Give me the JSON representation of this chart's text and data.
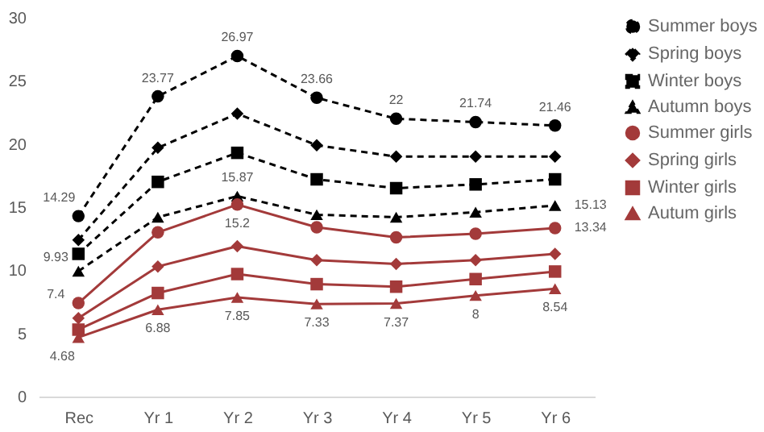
{
  "chart_data": {
    "type": "line",
    "categories": [
      "Rec",
      "Yr 1",
      "Yr 2",
      "Yr 3",
      "Yr 4",
      "Yr 5",
      "Yr 6"
    ],
    "ylim": [
      0,
      30
    ],
    "yticks": [
      0,
      5,
      10,
      15,
      20,
      25,
      30
    ],
    "grid": false,
    "legend": "right",
    "series": [
      {
        "name": "Summer boys",
        "color": "#000000",
        "marker": "circle",
        "line_style": "dashed",
        "values": [
          14.29,
          23.77,
          26.97,
          23.66,
          22,
          21.74,
          21.46
        ],
        "value_labels": [
          "14.29",
          "23.77",
          "26.97",
          "23.66",
          "22",
          "21.74",
          "21.46"
        ]
      },
      {
        "name": "Spring boys",
        "color": "#000000",
        "marker": "diamond",
        "line_style": "dashed",
        "values": [
          12.4,
          19.7,
          22.4,
          19.9,
          19.0,
          19.0,
          19.0
        ]
      },
      {
        "name": "Winter boys",
        "color": "#000000",
        "marker": "square",
        "line_style": "dashed",
        "values": [
          11.3,
          17.0,
          19.3,
          17.2,
          16.5,
          16.8,
          17.2
        ]
      },
      {
        "name": "Autumn boys",
        "color": "#000000",
        "marker": "triangle",
        "line_style": "dashed",
        "values": [
          9.93,
          14.2,
          15.87,
          14.4,
          14.2,
          14.6,
          15.13
        ],
        "value_labels": [
          "9.93",
          null,
          "15.87",
          null,
          null,
          null,
          "15.13"
        ]
      },
      {
        "name": "Summer girls",
        "color": "#a33a3a",
        "marker": "circle",
        "line_style": "solid",
        "values": [
          7.4,
          13.0,
          15.2,
          13.4,
          12.6,
          12.9,
          13.34
        ],
        "value_labels": [
          "7.4",
          null,
          "15.2",
          null,
          null,
          null,
          "13.34"
        ]
      },
      {
        "name": "Spring girls",
        "color": "#a33a3a",
        "marker": "diamond",
        "line_style": "solid",
        "values": [
          6.2,
          10.3,
          11.9,
          10.8,
          10.5,
          10.8,
          11.3
        ]
      },
      {
        "name": "Winter girls",
        "color": "#a33a3a",
        "marker": "square",
        "line_style": "solid",
        "values": [
          5.3,
          8.2,
          9.7,
          8.9,
          8.7,
          9.3,
          9.9
        ]
      },
      {
        "name": "Autum girls",
        "color": "#a33a3a",
        "marker": "triangle",
        "line_style": "solid",
        "values": [
          4.68,
          6.88,
          7.85,
          7.33,
          7.37,
          8,
          8.54
        ],
        "value_labels": [
          "4.68",
          "6.88",
          "7.85",
          "7.33",
          "7.37",
          "8",
          "8.54"
        ]
      }
    ]
  }
}
